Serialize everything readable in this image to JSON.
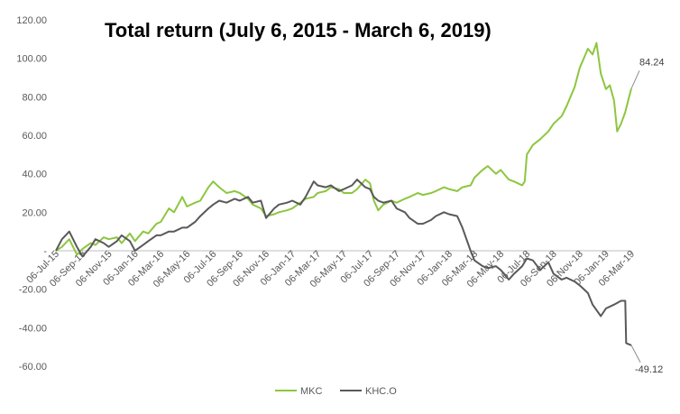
{
  "chart_data": {
    "type": "line",
    "title": "Total return (July 6, 2015 - March 6, 2019)",
    "xlabel": "",
    "ylabel": "",
    "ylim": [
      -60,
      120
    ],
    "y_ticks": [
      120,
      100,
      80,
      60,
      40,
      20,
      0,
      -20,
      -40,
      -60
    ],
    "y_tick_labels": [
      "120.00",
      "100.00",
      "80.00",
      "60.00",
      "40.00",
      "20.00",
      "-",
      "-20.00",
      "-40.00",
      "-60.00"
    ],
    "x_ticks": [
      "2015-07-06",
      "2015-09-06",
      "2015-11-06",
      "2016-01-06",
      "2016-03-06",
      "2016-05-06",
      "2016-07-06",
      "2016-09-06",
      "2016-11-06",
      "2017-01-06",
      "2017-03-06",
      "2017-05-06",
      "2017-07-06",
      "2017-09-06",
      "2017-11-06",
      "2018-01-06",
      "2018-03-06",
      "2018-05-06",
      "2018-07-06",
      "2018-09-06",
      "2018-11-06",
      "2019-01-06",
      "2019-03-06"
    ],
    "x_tick_labels": [
      "06-Jul-15",
      "06-Sep-15",
      "06-Nov-15",
      "06-Jan-16",
      "06-Mar-16",
      "06-May-16",
      "06-Jul-16",
      "06-Sep-16",
      "06-Nov-16",
      "06-Jan-17",
      "06-Mar-17",
      "06-May-17",
      "06-Jul-17",
      "06-Sep-17",
      "06-Nov-17",
      "06-Jan-18",
      "06-Mar-18",
      "06-May-18",
      "06-Jul-18",
      "06-Sep-18",
      "06-Nov-18",
      "06-Jan-19",
      "06-Mar-19"
    ],
    "grid": false,
    "legend": "bottom",
    "series": [
      {
        "name": "MKC",
        "color": "#8DC63F",
        "points": [
          [
            "2015-07-06",
            0
          ],
          [
            "2015-07-20",
            2
          ],
          [
            "2015-08-06",
            6
          ],
          [
            "2015-08-24",
            -2
          ],
          [
            "2015-09-06",
            1
          ],
          [
            "2015-09-25",
            4
          ],
          [
            "2015-10-06",
            3
          ],
          [
            "2015-10-25",
            7
          ],
          [
            "2015-11-06",
            6
          ],
          [
            "2015-11-25",
            7
          ],
          [
            "2015-12-06",
            4
          ],
          [
            "2015-12-25",
            9
          ],
          [
            "2016-01-06",
            5
          ],
          [
            "2016-01-25",
            10
          ],
          [
            "2016-02-06",
            9
          ],
          [
            "2016-02-25",
            14
          ],
          [
            "2016-03-06",
            15
          ],
          [
            "2016-03-25",
            22
          ],
          [
            "2016-04-06",
            20
          ],
          [
            "2016-04-25",
            28
          ],
          [
            "2016-05-06",
            23
          ],
          [
            "2016-05-25",
            25
          ],
          [
            "2016-06-06",
            26
          ],
          [
            "2016-06-25",
            33
          ],
          [
            "2016-07-06",
            36
          ],
          [
            "2016-07-20",
            33
          ],
          [
            "2016-08-06",
            30
          ],
          [
            "2016-08-25",
            31
          ],
          [
            "2016-09-06",
            30
          ],
          [
            "2016-09-25",
            27
          ],
          [
            "2016-10-06",
            24
          ],
          [
            "2016-10-25",
            22
          ],
          [
            "2016-11-06",
            18
          ],
          [
            "2016-11-25",
            19
          ],
          [
            "2016-12-06",
            20
          ],
          [
            "2016-12-25",
            21
          ],
          [
            "2017-01-06",
            22
          ],
          [
            "2017-01-25",
            25
          ],
          [
            "2017-02-06",
            27
          ],
          [
            "2017-02-25",
            28
          ],
          [
            "2017-03-06",
            30
          ],
          [
            "2017-03-25",
            31
          ],
          [
            "2017-04-06",
            33
          ],
          [
            "2017-04-25",
            32
          ],
          [
            "2017-05-06",
            30
          ],
          [
            "2017-05-25",
            30
          ],
          [
            "2017-06-06",
            32
          ],
          [
            "2017-06-25",
            37
          ],
          [
            "2017-07-06",
            35
          ],
          [
            "2017-07-15",
            26
          ],
          [
            "2017-07-25",
            21
          ],
          [
            "2017-08-06",
            24
          ],
          [
            "2017-08-25",
            26
          ],
          [
            "2017-09-06",
            25
          ],
          [
            "2017-09-25",
            27
          ],
          [
            "2017-10-06",
            28
          ],
          [
            "2017-10-25",
            30
          ],
          [
            "2017-11-06",
            29
          ],
          [
            "2017-11-25",
            30
          ],
          [
            "2017-12-06",
            31
          ],
          [
            "2017-12-25",
            33
          ],
          [
            "2018-01-06",
            32
          ],
          [
            "2018-01-25",
            31
          ],
          [
            "2018-02-06",
            33
          ],
          [
            "2018-02-25",
            34
          ],
          [
            "2018-03-06",
            38
          ],
          [
            "2018-03-25",
            42
          ],
          [
            "2018-04-06",
            44
          ],
          [
            "2018-04-25",
            40
          ],
          [
            "2018-05-06",
            42
          ],
          [
            "2018-05-25",
            37
          ],
          [
            "2018-06-06",
            36
          ],
          [
            "2018-06-25",
            34
          ],
          [
            "2018-07-01",
            36
          ],
          [
            "2018-07-06",
            50
          ],
          [
            "2018-07-20",
            55
          ],
          [
            "2018-08-06",
            58
          ],
          [
            "2018-08-25",
            62
          ],
          [
            "2018-09-06",
            66
          ],
          [
            "2018-09-25",
            70
          ],
          [
            "2018-10-06",
            75
          ],
          [
            "2018-10-25",
            85
          ],
          [
            "2018-11-06",
            95
          ],
          [
            "2018-11-25",
            105
          ],
          [
            "2018-12-06",
            102
          ],
          [
            "2018-12-15",
            108
          ],
          [
            "2018-12-25",
            92
          ],
          [
            "2019-01-06",
            84
          ],
          [
            "2019-01-15",
            86
          ],
          [
            "2019-01-25",
            78
          ],
          [
            "2019-02-01",
            62
          ],
          [
            "2019-02-10",
            66
          ],
          [
            "2019-02-20",
            72
          ],
          [
            "2019-03-01",
            80
          ],
          [
            "2019-03-06",
            84.24
          ]
        ]
      },
      {
        "name": "KHC.O",
        "color": "#595959",
        "points": [
          [
            "2015-07-06",
            0
          ],
          [
            "2015-07-20",
            6
          ],
          [
            "2015-08-06",
            10
          ],
          [
            "2015-08-24",
            2
          ],
          [
            "2015-09-06",
            -3
          ],
          [
            "2015-09-25",
            2
          ],
          [
            "2015-10-06",
            6
          ],
          [
            "2015-10-25",
            4
          ],
          [
            "2015-11-06",
            2
          ],
          [
            "2015-11-25",
            5
          ],
          [
            "2015-12-06",
            8
          ],
          [
            "2015-12-25",
            5
          ],
          [
            "2016-01-06",
            0
          ],
          [
            "2016-01-25",
            3
          ],
          [
            "2016-02-06",
            5
          ],
          [
            "2016-02-25",
            8
          ],
          [
            "2016-03-06",
            8
          ],
          [
            "2016-03-25",
            10
          ],
          [
            "2016-04-06",
            10
          ],
          [
            "2016-04-25",
            12
          ],
          [
            "2016-05-06",
            12
          ],
          [
            "2016-05-25",
            15
          ],
          [
            "2016-06-06",
            18
          ],
          [
            "2016-06-25",
            22
          ],
          [
            "2016-07-06",
            24
          ],
          [
            "2016-07-20",
            26
          ],
          [
            "2016-08-06",
            25
          ],
          [
            "2016-08-25",
            27
          ],
          [
            "2016-09-06",
            26
          ],
          [
            "2016-09-25",
            28
          ],
          [
            "2016-10-06",
            25
          ],
          [
            "2016-10-25",
            26
          ],
          [
            "2016-11-06",
            17
          ],
          [
            "2016-11-25",
            22
          ],
          [
            "2016-12-06",
            24
          ],
          [
            "2016-12-25",
            25
          ],
          [
            "2017-01-06",
            26
          ],
          [
            "2017-01-25",
            24
          ],
          [
            "2017-02-06",
            28
          ],
          [
            "2017-02-25",
            36
          ],
          [
            "2017-03-06",
            34
          ],
          [
            "2017-03-25",
            33
          ],
          [
            "2017-04-06",
            34
          ],
          [
            "2017-04-25",
            31
          ],
          [
            "2017-05-06",
            32
          ],
          [
            "2017-05-25",
            34
          ],
          [
            "2017-06-06",
            37
          ],
          [
            "2017-06-25",
            33
          ],
          [
            "2017-07-06",
            32
          ],
          [
            "2017-07-15",
            28
          ],
          [
            "2017-07-25",
            26
          ],
          [
            "2017-08-06",
            25
          ],
          [
            "2017-08-25",
            26
          ],
          [
            "2017-09-06",
            22
          ],
          [
            "2017-09-25",
            20
          ],
          [
            "2017-10-06",
            17
          ],
          [
            "2017-10-25",
            14
          ],
          [
            "2017-11-06",
            14
          ],
          [
            "2017-11-25",
            16
          ],
          [
            "2017-12-06",
            18
          ],
          [
            "2017-12-25",
            20
          ],
          [
            "2018-01-06",
            19
          ],
          [
            "2018-01-25",
            18
          ],
          [
            "2018-02-06",
            12
          ],
          [
            "2018-02-25",
            0
          ],
          [
            "2018-03-06",
            -5
          ],
          [
            "2018-03-25",
            -8
          ],
          [
            "2018-04-06",
            -9
          ],
          [
            "2018-04-25",
            -8
          ],
          [
            "2018-05-06",
            -10
          ],
          [
            "2018-05-25",
            -15
          ],
          [
            "2018-06-06",
            -12
          ],
          [
            "2018-06-25",
            -8
          ],
          [
            "2018-07-06",
            -4
          ],
          [
            "2018-07-20",
            -5
          ],
          [
            "2018-08-06",
            -10
          ],
          [
            "2018-08-25",
            -6
          ],
          [
            "2018-09-06",
            -12
          ],
          [
            "2018-09-25",
            -15
          ],
          [
            "2018-10-06",
            -14
          ],
          [
            "2018-10-25",
            -16
          ],
          [
            "2018-11-06",
            -18
          ],
          [
            "2018-11-25",
            -22
          ],
          [
            "2018-12-06",
            -28
          ],
          [
            "2018-12-25",
            -34
          ],
          [
            "2019-01-06",
            -30
          ],
          [
            "2019-01-25",
            -28
          ],
          [
            "2019-02-10",
            -26
          ],
          [
            "2019-02-20",
            -26
          ],
          [
            "2019-02-22",
            -48
          ],
          [
            "2019-03-06",
            -49.12
          ]
        ]
      }
    ],
    "annotations": [
      {
        "series": "MKC",
        "text": "84.24"
      },
      {
        "series": "KHC.O",
        "text": "-49.12"
      }
    ]
  }
}
